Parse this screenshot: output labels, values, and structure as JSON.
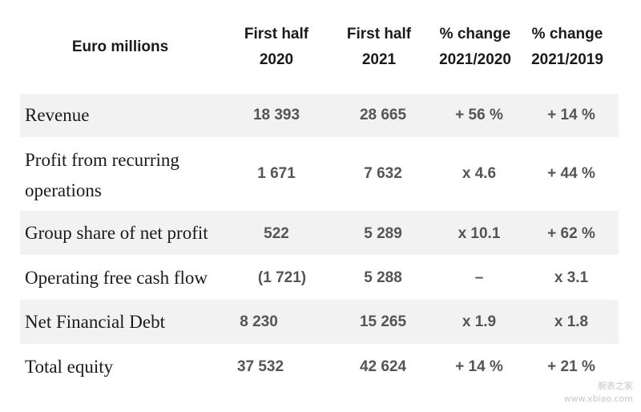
{
  "headers": {
    "label": "Euro millions",
    "col1": [
      "First half",
      "2020"
    ],
    "col2": [
      "First half",
      "2021"
    ],
    "col3": [
      "% change",
      "2021/2020"
    ],
    "col4": [
      "% change",
      "2021/2019"
    ]
  },
  "rows": [
    {
      "label": "Revenue",
      "v1": "18 393",
      "v2": "28 665",
      "v3": "+ 56 %",
      "v4": "+ 14 %"
    },
    {
      "label_lines": [
        "Profit from recurring",
        "operations"
      ],
      "v1": "1 671",
      "v2": "7 632",
      "v3": "x 4.6",
      "v4": "+ 44 %"
    },
    {
      "label": "Group share of net profit",
      "v1": "522",
      "v2": "5 289",
      "v3": "x 10.1",
      "v4": "+ 62 %"
    },
    {
      "label": "Operating free cash flow",
      "v1": "(1 721)",
      "v2": "5 288",
      "v3": "–",
      "v4": "x 3.1"
    },
    {
      "label": "Net Financial Debt",
      "v1": "8 230",
      "v2": "15 265",
      "v3": "x 1.9",
      "v4": "x 1.8"
    },
    {
      "label": "Total equity",
      "v1": "37 532",
      "v2": "42 624",
      "v3": "+ 14 %",
      "v4": "+ 21 %"
    }
  ],
  "watermark": [
    "腕表之家",
    "www.xbiao.com"
  ],
  "colors": {
    "shade": "#f2f2f2",
    "value": "#555555",
    "label": "#1a1a1a"
  }
}
